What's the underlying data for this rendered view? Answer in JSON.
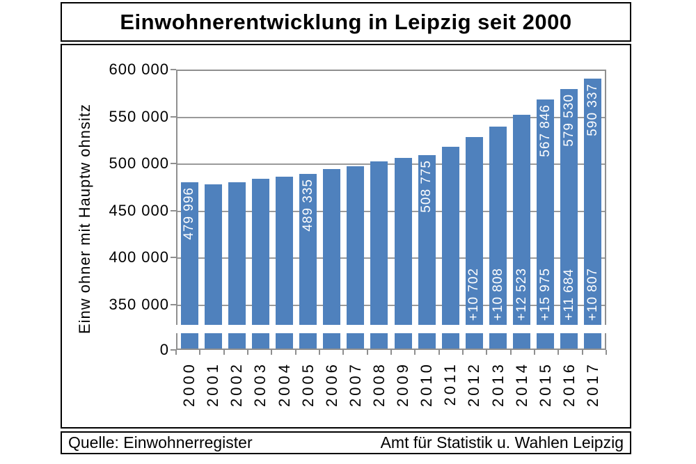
{
  "title": "Einwohnerentwicklung in Leipzig seit 2000",
  "y_axis": {
    "label": "Einw ohner mit Hauptw ohnsitz"
  },
  "source": {
    "left": "Quelle: Einwohnerregister",
    "right": "Amt für Statistik u. Wahlen Leipzig"
  },
  "colors": {
    "bar": "#4f81bd",
    "bar_label": "#ffffff",
    "gridline": "#9a9a9a",
    "plot_border": "#8f8f8f",
    "text": "#000000",
    "box_border": "#000000"
  },
  "chart_data": {
    "type": "bar",
    "title": "Einwohnerentwicklung in Leipzig seit 2000",
    "xlabel": "",
    "ylabel": "Einwohner mit Hauptwohnsitz",
    "legend": false,
    "grid": true,
    "ylim_display": [
      350000,
      600000
    ],
    "axis_break_between": [
      0,
      350000
    ],
    "y_ticks": [
      {
        "value": 600000,
        "label": "600 000"
      },
      {
        "value": 550000,
        "label": "550 000"
      },
      {
        "value": 500000,
        "label": "500 000"
      },
      {
        "value": 450000,
        "label": "450 000"
      },
      {
        "value": 400000,
        "label": "400 000"
      },
      {
        "value": 350000,
        "label": "350 000"
      },
      {
        "value": 0,
        "label": "0"
      }
    ],
    "categories": [
      "2000",
      "2001",
      "2002",
      "2003",
      "2004",
      "2005",
      "2006",
      "2007",
      "2008",
      "2009",
      "2010",
      "2011",
      "2012",
      "2013",
      "2014",
      "2015",
      "2016",
      "2017"
    ],
    "values": [
      479996,
      478000,
      480000,
      484000,
      486000,
      489335,
      494000,
      497000,
      502000,
      506000,
      508775,
      517838,
      528540,
      539348,
      551871,
      567846,
      579530,
      590337
    ],
    "total_labels": [
      "479 996",
      "",
      "",
      "",
      "",
      "489 335",
      "",
      "",
      "",
      "",
      "508 775",
      "",
      "",
      "",
      "",
      "567 846",
      "579 530",
      "590 337"
    ],
    "delta_labels": [
      "",
      "",
      "",
      "",
      "",
      "",
      "",
      "",
      "",
      "",
      "",
      "",
      "+10 702",
      "+10 808",
      "+12 523",
      "+15 975",
      "+11 684",
      "+10 807"
    ]
  }
}
